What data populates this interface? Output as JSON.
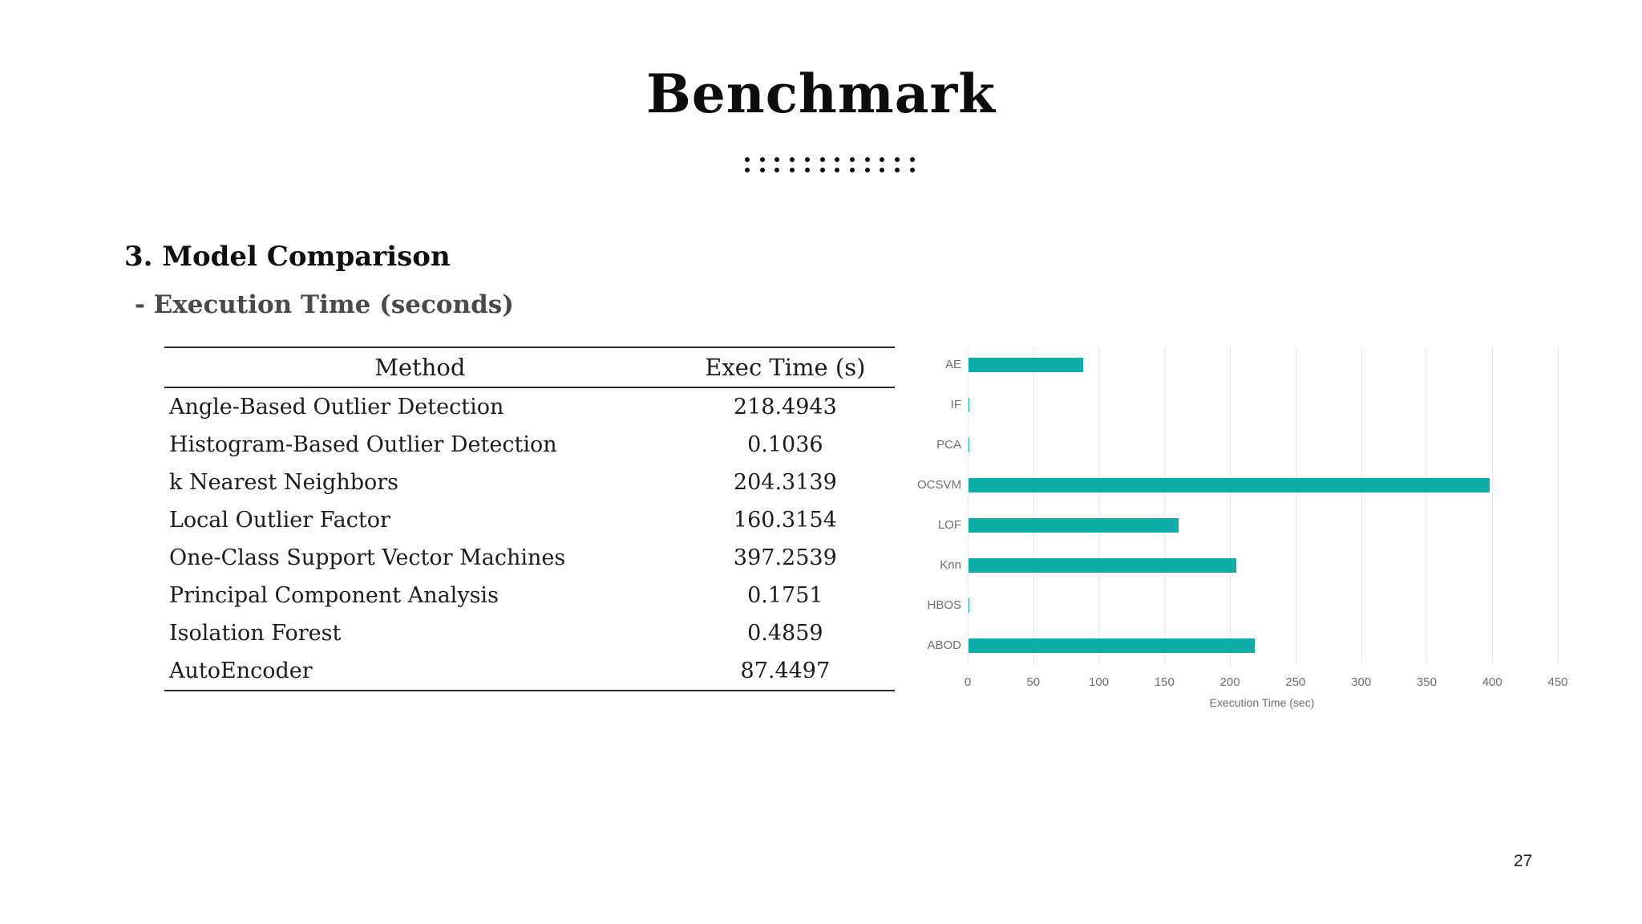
{
  "slide": {
    "title": "Benchmark",
    "section_heading": "3. Model Comparison",
    "sub_heading": "- Execution Time (seconds)",
    "page_number": "27"
  },
  "decoration": {
    "dot_columns": 12,
    "dot_rows": 2,
    "dot_color": "#0f0f0f"
  },
  "table": {
    "columns": [
      "Method",
      "Exec Time (s)"
    ],
    "rows": [
      {
        "method": "Angle-Based Outlier Detection",
        "exec_time": "218.4943"
      },
      {
        "method": "Histogram-Based Outlier Detection",
        "exec_time": "0.1036"
      },
      {
        "method": "k Nearest Neighbors",
        "exec_time": "204.3139"
      },
      {
        "method": "Local Outlier Factor",
        "exec_time": "160.3154"
      },
      {
        "method": "One-Class Support Vector Machines",
        "exec_time": "397.2539"
      },
      {
        "method": "Principal Component Analysis",
        "exec_time": "0.1751"
      },
      {
        "method": "Isolation Forest",
        "exec_time": "0.4859"
      },
      {
        "method": "AutoEncoder",
        "exec_time": "87.4497"
      }
    ]
  },
  "chart_data": {
    "type": "bar",
    "orientation": "horizontal",
    "categories": [
      "AE",
      "IF",
      "PCA",
      "OCSVM",
      "LOF",
      "Knn",
      "HBOS",
      "ABOD"
    ],
    "values": [
      87.4497,
      0.4859,
      0.1751,
      397.2539,
      160.3154,
      204.3139,
      0.1036,
      218.4943
    ],
    "title": "",
    "xlabel": "Execution Time (sec)",
    "ylabel": "",
    "x_ticks": [
      0,
      50,
      100,
      150,
      200,
      250,
      300,
      350,
      400,
      450
    ],
    "xlim": [
      0,
      470
    ],
    "grid": true,
    "legend": false,
    "bar_color": "#0fada8",
    "gridline_color": "#eaeaea",
    "label_color": "#6e6e6e"
  }
}
